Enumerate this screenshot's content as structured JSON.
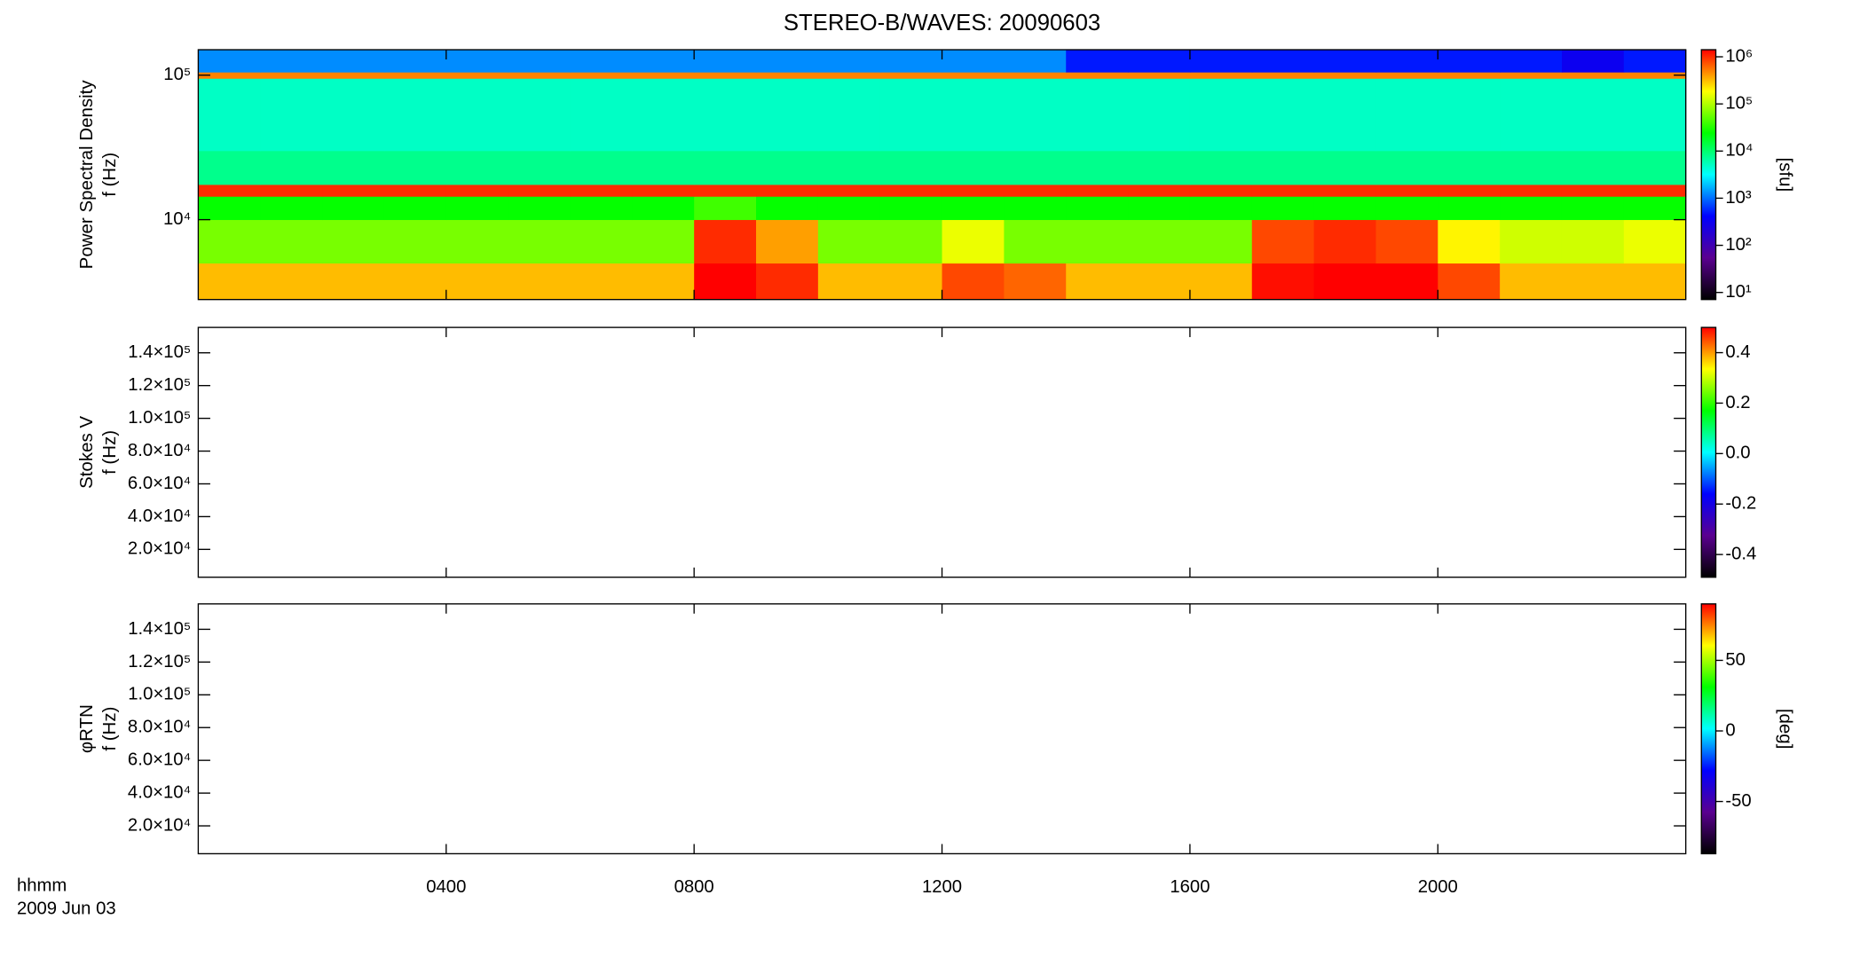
{
  "title": "STEREO-B/WAVES: 20090603",
  "time_label": "hhmm",
  "date_label": "2009 Jun 03",
  "chart_data": [
    {
      "type": "heatmap",
      "ylabel": [
        "Power Spectral Density",
        "f (Hz)"
      ],
      "ylog": true,
      "ylim": [
        2800,
        150000
      ],
      "yticks": [
        {
          "value": 10000,
          "label": "10⁴"
        },
        {
          "value": 100000,
          "label": "10⁵"
        }
      ],
      "xbins": [
        0,
        1,
        2,
        3,
        4,
        5,
        6,
        7,
        8,
        9,
        10,
        11,
        12,
        13,
        14,
        15,
        16,
        17,
        18,
        19,
        20,
        21,
        22,
        23,
        24
      ],
      "ybins": [
        2800,
        5000,
        10000,
        14500,
        17500,
        30000,
        95000,
        105000,
        150000
      ],
      "z": [
        [
          5.5,
          5.5,
          5.5,
          5.5,
          5.5,
          5.5,
          5.5,
          5.5,
          6.2,
          6.0,
          5.5,
          5.5,
          5.9,
          5.8,
          5.5,
          5.5,
          5.5,
          6.1,
          6.2,
          6.2,
          5.9,
          5.5,
          5.5,
          5.5
        ],
        [
          4.8,
          4.8,
          4.8,
          4.8,
          4.8,
          4.8,
          4.8,
          4.8,
          6.0,
          5.6,
          4.8,
          4.8,
          5.2,
          4.8,
          4.8,
          4.8,
          4.8,
          5.9,
          6.0,
          5.9,
          5.3,
          5.1,
          5.1,
          5.2
        ],
        [
          4.4,
          4.4,
          4.4,
          4.4,
          4.4,
          4.4,
          4.4,
          4.4,
          4.6,
          4.4,
          4.4,
          4.4,
          4.4,
          4.4,
          4.4,
          4.4,
          4.4,
          4.4,
          4.4,
          4.4,
          4.4,
          4.4,
          4.4,
          4.4
        ],
        [
          6.0,
          6.0,
          6.0,
          6.0,
          6.0,
          6.0,
          6.0,
          6.0,
          6.0,
          6.0,
          6.0,
          6.0,
          6.0,
          6.0,
          6.0,
          6.0,
          6.0,
          6.0,
          6.0,
          6.0,
          6.0,
          6.0,
          6.0,
          6.0
        ],
        [
          3.9,
          3.9,
          3.9,
          3.9,
          3.9,
          3.9,
          3.9,
          3.9,
          3.9,
          3.9,
          3.9,
          3.9,
          3.9,
          3.9,
          3.9,
          3.9,
          3.9,
          3.9,
          3.9,
          3.9,
          3.9,
          3.9,
          3.9,
          3.9
        ],
        [
          3.7,
          3.7,
          3.7,
          3.7,
          3.7,
          3.7,
          3.7,
          3.7,
          3.7,
          3.7,
          3.7,
          3.7,
          3.7,
          3.7,
          3.7,
          3.7,
          3.7,
          3.7,
          3.7,
          3.7,
          3.7,
          3.7,
          3.7,
          3.7
        ],
        [
          5.7,
          5.7,
          5.7,
          5.7,
          5.7,
          5.7,
          5.7,
          5.7,
          5.7,
          5.7,
          5.7,
          5.7,
          5.7,
          5.7,
          5.7,
          5.7,
          5.7,
          5.7,
          5.7,
          5.7,
          5.7,
          5.7,
          5.7,
          5.7
        ],
        [
          3.1,
          3.1,
          3.1,
          3.1,
          3.1,
          3.1,
          3.1,
          3.1,
          3.1,
          3.1,
          3.1,
          3.1,
          3.1,
          3.1,
          2.7,
          2.7,
          2.7,
          2.7,
          2.7,
          2.7,
          2.7,
          2.7,
          2.5,
          2.7
        ]
      ],
      "colors": [
        "#000000",
        "#5a0090",
        "#0000ff",
        "#00ffff",
        "#00ff00",
        "#ffff00",
        "#ff0000"
      ],
      "clim": [
        0.85,
        6.15
      ],
      "cticks": [
        {
          "value": 1,
          "label": "10¹"
        },
        {
          "value": 2,
          "label": "10²"
        },
        {
          "value": 3,
          "label": "10³"
        },
        {
          "value": 4,
          "label": "10⁴"
        },
        {
          "value": 5,
          "label": "10⁵"
        },
        {
          "value": 6,
          "label": "10⁶"
        }
      ],
      "clabel": "[sfu]"
    },
    {
      "type": "heatmap",
      "ylabel": [
        "Stokes V",
        "f (Hz)"
      ],
      "ylog": false,
      "ylim": [
        3000,
        155500
      ],
      "yticks": [
        {
          "value": 20000,
          "label": "2.0×10⁴"
        },
        {
          "value": 40000,
          "label": "4.0×10⁴"
        },
        {
          "value": 60000,
          "label": "6.0×10⁴"
        },
        {
          "value": 80000,
          "label": "8.0×10⁴"
        },
        {
          "value": 100000,
          "label": "1.0×10⁵"
        },
        {
          "value": 120000,
          "label": "1.2×10⁵"
        },
        {
          "value": 140000,
          "label": "1.4×10⁵"
        }
      ],
      "colors": [
        "#000000",
        "#5a0090",
        "#0000ff",
        "#00ffff",
        "#00ff00",
        "#ffff00",
        "#ff0000"
      ],
      "clim": [
        -0.49,
        0.5
      ],
      "cticks": [
        -0.4,
        -0.2,
        {
          "value": 0,
          "label": "0.0"
        },
        0.2,
        0.4
      ]
    },
    {
      "type": "heatmap",
      "ylabel": [
        "φRTN",
        "f (Hz)"
      ],
      "ylog": false,
      "ylim": [
        3000,
        155500
      ],
      "yticks": [
        {
          "value": 20000,
          "label": "2.0×10⁴"
        },
        {
          "value": 40000,
          "label": "4.0×10⁴"
        },
        {
          "value": 60000,
          "label": "6.0×10⁴"
        },
        {
          "value": 80000,
          "label": "8.0×10⁴"
        },
        {
          "value": 100000,
          "label": "1.0×10⁵"
        },
        {
          "value": 120000,
          "label": "1.2×10⁵"
        },
        {
          "value": 140000,
          "label": "1.4×10⁵"
        }
      ],
      "xlim": [
        0,
        24
      ],
      "xticks": [
        {
          "value": 4,
          "label": "0400"
        },
        {
          "value": 8,
          "label": "0800"
        },
        {
          "value": 12,
          "label": "1200"
        },
        {
          "value": 16,
          "label": "1600"
        },
        {
          "value": 20,
          "label": "2000"
        }
      ],
      "colors": [
        "#000000",
        "#5a0090",
        "#0000ff",
        "#00ffff",
        "#00ff00",
        "#ffff00",
        "#ff0000"
      ],
      "clim": [
        -87,
        90
      ],
      "cticks": [
        -50,
        0,
        50
      ],
      "clabel": "[deg]"
    }
  ]
}
